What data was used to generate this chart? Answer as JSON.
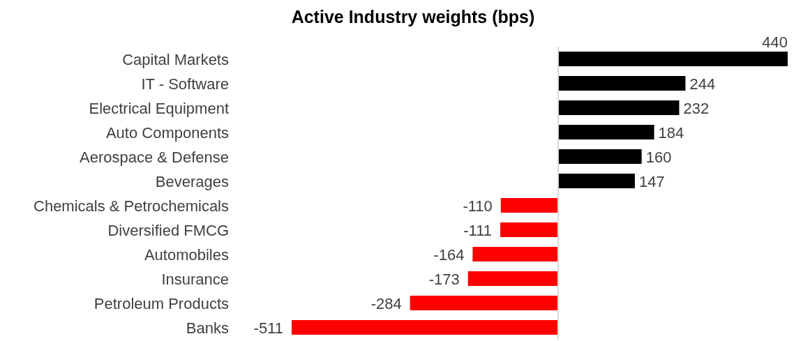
{
  "chart_data": {
    "type": "bar",
    "orientation": "horizontal",
    "title": "Active Industry weights (bps)",
    "categories": [
      "Capital Markets",
      "IT - Software",
      "Electrical Equipment",
      "Auto Components",
      "Aerospace & Defense",
      "Beverages",
      "Chemicals & Petrochemicals",
      "Diversified FMCG",
      "Automobiles",
      "Insurance",
      "Petroleum Products",
      "Banks"
    ],
    "values": [
      440,
      244,
      232,
      184,
      160,
      147,
      -110,
      -111,
      -164,
      -173,
      -284,
      -511
    ],
    "colors": [
      "#000000",
      "#000000",
      "#000000",
      "#000000",
      "#000000",
      "#000000",
      "#ff0000",
      "#ff0000",
      "#ff0000",
      "#ff0000",
      "#ff0000",
      "#ff0000"
    ],
    "data_labels": true,
    "tick_labels": "y"
  }
}
